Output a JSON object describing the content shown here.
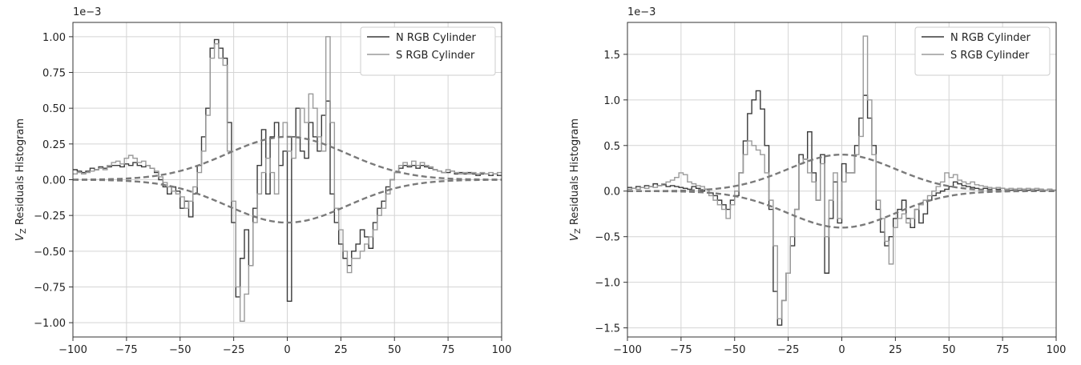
{
  "chart_data": [
    {
      "type": "line",
      "ylabel": "V_Z Residuals Histogram",
      "ylabel_sub": "Z",
      "offset_text": "1e−3",
      "xlim": [
        -100,
        100
      ],
      "ylim": [
        -1.1,
        1.1
      ],
      "xticks": [
        -100,
        -75,
        -50,
        -25,
        0,
        25,
        50,
        75,
        100
      ],
      "xtick_labels": [
        "−100",
        "−75",
        "−50",
        "−25",
        "0",
        "25",
        "50",
        "75",
        "100"
      ],
      "yticks": [
        -1.0,
        -0.75,
        -0.5,
        -0.25,
        0,
        0.25,
        0.5,
        0.75,
        1.0
      ],
      "ytick_labels": [
        "−1.00",
        "−0.75",
        "−0.50",
        "−0.25",
        "0.00",
        "0.25",
        "0.50",
        "0.75",
        "1.00"
      ],
      "grid": true,
      "legend_position": "top-right",
      "bin_width": 2,
      "series": [
        {
          "name": "N RGB Cylinder",
          "style": "step",
          "color": "#3a3a3a",
          "x": [
            -100,
            -98,
            -96,
            -94,
            -92,
            -90,
            -88,
            -86,
            -84,
            -82,
            -80,
            -78,
            -76,
            -74,
            -72,
            -70,
            -68,
            -66,
            -64,
            -62,
            -60,
            -58,
            -56,
            -54,
            -52,
            -50,
            -48,
            -46,
            -44,
            -42,
            -40,
            -38,
            -36,
            -34,
            -32,
            -30,
            -28,
            -26,
            -24,
            -22,
            -20,
            -18,
            -16,
            -14,
            -12,
            -10,
            -8,
            -6,
            -4,
            -2,
            0,
            2,
            4,
            6,
            8,
            10,
            12,
            14,
            16,
            18,
            20,
            22,
            24,
            26,
            28,
            30,
            32,
            34,
            36,
            38,
            40,
            42,
            44,
            46,
            48,
            50,
            52,
            54,
            56,
            58,
            60,
            62,
            64,
            66,
            68,
            70,
            72,
            74,
            76,
            78,
            80,
            82,
            84,
            86,
            88,
            90,
            92,
            94,
            96,
            98
          ],
          "values": [
            0.07,
            0.06,
            0.05,
            0.06,
            0.08,
            0.07,
            0.09,
            0.08,
            0.09,
            0.1,
            0.1,
            0.09,
            0.11,
            0.1,
            0.12,
            0.1,
            0.09,
            0.1,
            0.08,
            0.05,
            0.0,
            -0.05,
            -0.1,
            -0.05,
            -0.08,
            -0.2,
            -0.15,
            -0.26,
            -0.1,
            0.1,
            0.3,
            0.5,
            0.92,
            0.98,
            0.92,
            0.85,
            0.4,
            -0.3,
            -0.82,
            -0.55,
            -0.35,
            -0.6,
            -0.2,
            0.1,
            0.35,
            -0.1,
            0.3,
            0.4,
            0.1,
            0.2,
            -0.85,
            0.3,
            0.5,
            0.2,
            0.15,
            0.4,
            0.3,
            0.2,
            0.45,
            0.55,
            -0.1,
            -0.3,
            -0.45,
            -0.55,
            -0.6,
            -0.5,
            -0.45,
            -0.35,
            -0.4,
            -0.48,
            -0.3,
            -0.2,
            -0.15,
            -0.05,
            0.0,
            0.05,
            0.08,
            0.1,
            0.09,
            0.1,
            0.08,
            0.1,
            0.09,
            0.08,
            0.07,
            0.06,
            0.05,
            0.05,
            0.06,
            0.04,
            0.05,
            0.04,
            0.05,
            0.04,
            0.03,
            0.04,
            0.04,
            0.03,
            0.04,
            0.03
          ]
        },
        {
          "name": "S RGB Cylinder",
          "style": "step",
          "color": "#9a9a9a",
          "x": [
            -100,
            -98,
            -96,
            -94,
            -92,
            -90,
            -88,
            -86,
            -84,
            -82,
            -80,
            -78,
            -76,
            -74,
            -72,
            -70,
            -68,
            -66,
            -64,
            -62,
            -60,
            -58,
            -56,
            -54,
            -52,
            -50,
            -48,
            -46,
            -44,
            -42,
            -40,
            -38,
            -36,
            -34,
            -32,
            -30,
            -28,
            -26,
            -24,
            -22,
            -20,
            -18,
            -16,
            -14,
            -12,
            -10,
            -8,
            -6,
            -4,
            -2,
            0,
            2,
            4,
            6,
            8,
            10,
            12,
            14,
            16,
            18,
            20,
            22,
            24,
            26,
            28,
            30,
            32,
            34,
            36,
            38,
            40,
            42,
            44,
            46,
            48,
            50,
            52,
            54,
            56,
            58,
            60,
            62,
            64,
            66,
            68,
            70,
            72,
            74,
            76,
            78,
            80,
            82,
            84,
            86,
            88,
            90,
            92,
            94,
            96,
            98
          ],
          "values": [
            0.04,
            0.05,
            0.04,
            0.05,
            0.06,
            0.07,
            0.08,
            0.07,
            0.1,
            0.12,
            0.13,
            0.11,
            0.15,
            0.17,
            0.15,
            0.12,
            0.13,
            0.1,
            0.08,
            0.06,
            0.02,
            -0.02,
            -0.05,
            -0.08,
            -0.1,
            -0.12,
            -0.2,
            -0.15,
            -0.05,
            0.05,
            0.2,
            0.45,
            0.85,
            0.95,
            0.85,
            0.8,
            0.2,
            -0.15,
            -0.75,
            -0.99,
            -0.8,
            -0.6,
            -0.3,
            -0.1,
            0.05,
            0.15,
            0.05,
            -0.1,
            0.3,
            0.4,
            0.2,
            0.15,
            0.3,
            0.5,
            0.4,
            0.6,
            0.5,
            0.3,
            0.2,
            1.0,
            0.4,
            -0.2,
            -0.35,
            -0.5,
            -0.65,
            -0.55,
            -0.55,
            -0.5,
            -0.45,
            -0.4,
            -0.35,
            -0.25,
            -0.2,
            -0.1,
            0.0,
            0.05,
            0.1,
            0.12,
            0.1,
            0.13,
            0.1,
            0.12,
            0.1,
            0.09,
            0.07,
            0.06,
            0.05,
            0.07,
            0.06,
            0.05,
            0.04,
            0.05,
            0.04,
            0.05,
            0.04,
            0.05,
            0.04,
            0.05,
            0.04,
            0.05
          ]
        },
        {
          "name": "",
          "style": "dashed-gaussian",
          "color": "#7a7a7a",
          "amplitude": 0.3,
          "center": 0,
          "sigma": 28
        },
        {
          "name": "",
          "style": "dashed-gaussian",
          "color": "#7a7a7a",
          "amplitude": -0.3,
          "center": 0,
          "sigma": 28
        }
      ]
    },
    {
      "type": "line",
      "ylabel": "V_Z Residuals Histogram",
      "ylabel_sub": "Z",
      "offset_text": "1e−3",
      "xlim": [
        -100,
        100
      ],
      "ylim": [
        -1.6,
        1.85
      ],
      "xticks": [
        -100,
        -75,
        -50,
        -25,
        0,
        25,
        50,
        75,
        100
      ],
      "xtick_labels": [
        "−100",
        "−75",
        "−50",
        "−25",
        "0",
        "25",
        "50",
        "75",
        "100"
      ],
      "yticks": [
        -1.5,
        -1.0,
        -0.5,
        0,
        0.5,
        1.0,
        1.5
      ],
      "ytick_labels": [
        "−1.5",
        "−1.0",
        "−0.5",
        "0.0",
        "0.5",
        "1.0",
        "1.5"
      ],
      "grid": true,
      "legend_position": "top-right",
      "bin_width": 2,
      "series": [
        {
          "name": "N RGB Cylinder",
          "style": "step",
          "color": "#3a3a3a",
          "x": [
            -100,
            -98,
            -96,
            -94,
            -92,
            -90,
            -88,
            -86,
            -84,
            -82,
            -80,
            -78,
            -76,
            -74,
            -72,
            -70,
            -68,
            -66,
            -64,
            -62,
            -60,
            -58,
            -56,
            -54,
            -52,
            -50,
            -48,
            -46,
            -44,
            -42,
            -40,
            -38,
            -36,
            -34,
            -32,
            -30,
            -28,
            -26,
            -24,
            -22,
            -20,
            -18,
            -16,
            -14,
            -12,
            -10,
            -8,
            -6,
            -4,
            -2,
            0,
            2,
            4,
            6,
            8,
            10,
            12,
            14,
            16,
            18,
            20,
            22,
            24,
            26,
            28,
            30,
            32,
            34,
            36,
            38,
            40,
            42,
            44,
            46,
            48,
            50,
            52,
            54,
            56,
            58,
            60,
            62,
            64,
            66,
            68,
            70,
            72,
            74,
            76,
            78,
            80,
            82,
            84,
            86,
            88,
            90,
            92,
            94,
            96,
            98
          ],
          "values": [
            0.04,
            0.03,
            0.05,
            0.04,
            0.06,
            0.05,
            0.08,
            0.06,
            0.07,
            0.05,
            0.06,
            0.05,
            0.04,
            0.03,
            0.02,
            0.05,
            0.03,
            0.0,
            0.02,
            -0.02,
            -0.05,
            -0.1,
            -0.15,
            -0.2,
            -0.1,
            -0.05,
            0.2,
            0.55,
            0.85,
            1.0,
            1.1,
            0.9,
            0.5,
            -0.2,
            -1.1,
            -1.47,
            -1.2,
            -0.9,
            -0.6,
            -0.2,
            0.4,
            0.35,
            0.65,
            0.2,
            -0.1,
            0.4,
            -0.9,
            -0.3,
            0.1,
            -0.35,
            0.3,
            0.2,
            0.2,
            0.5,
            0.8,
            1.05,
            0.8,
            0.5,
            -0.2,
            -0.45,
            -0.6,
            -0.5,
            -0.3,
            -0.2,
            -0.1,
            -0.3,
            -0.4,
            -0.2,
            -0.35,
            -0.25,
            -0.1,
            -0.05,
            -0.02,
            0.0,
            0.02,
            0.05,
            0.1,
            0.08,
            0.06,
            0.05,
            0.04,
            0.03,
            0.02,
            0.03,
            0.02,
            0.03,
            0.02,
            0.03,
            0.02,
            0.01,
            0.02,
            0.01,
            0.02,
            0.01,
            0.02,
            0.01,
            0.02,
            0.01,
            0.02,
            0.01
          ]
        },
        {
          "name": "S RGB Cylinder",
          "style": "step",
          "color": "#9a9a9a",
          "x": [
            -100,
            -98,
            -96,
            -94,
            -92,
            -90,
            -88,
            -86,
            -84,
            -82,
            -80,
            -78,
            -76,
            -74,
            -72,
            -70,
            -68,
            -66,
            -64,
            -62,
            -60,
            -58,
            -56,
            -54,
            -52,
            -50,
            -48,
            -46,
            -44,
            -42,
            -40,
            -38,
            -36,
            -34,
            -32,
            -30,
            -28,
            -26,
            -24,
            -22,
            -20,
            -18,
            -16,
            -14,
            -12,
            -10,
            -8,
            -6,
            -4,
            -2,
            0,
            2,
            4,
            6,
            8,
            10,
            12,
            14,
            16,
            18,
            20,
            22,
            24,
            26,
            28,
            30,
            32,
            34,
            36,
            38,
            40,
            42,
            44,
            46,
            48,
            50,
            52,
            54,
            56,
            58,
            60,
            62,
            64,
            66,
            68,
            70,
            72,
            74,
            76,
            78,
            80,
            82,
            84,
            86,
            88,
            90,
            92,
            94,
            96,
            98
          ],
          "values": [
            0.02,
            0.03,
            0.02,
            0.04,
            0.03,
            0.05,
            0.04,
            0.06,
            0.08,
            0.1,
            0.12,
            0.15,
            0.2,
            0.18,
            0.1,
            0.08,
            0.06,
            0.05,
            0.02,
            -0.05,
            -0.1,
            -0.15,
            -0.2,
            -0.3,
            -0.15,
            0.0,
            0.2,
            0.4,
            0.55,
            0.5,
            0.45,
            0.4,
            0.2,
            -0.1,
            -0.6,
            -1.4,
            -1.2,
            -0.9,
            -0.5,
            -0.2,
            0.3,
            0.35,
            0.2,
            0.1,
            -0.1,
            0.3,
            -0.5,
            -0.1,
            0.2,
            -0.3,
            0.1,
            0.2,
            0.2,
            0.4,
            0.6,
            1.7,
            1.0,
            0.4,
            -0.1,
            -0.3,
            -0.55,
            -0.8,
            -0.4,
            -0.3,
            -0.25,
            -0.35,
            -0.3,
            -0.2,
            -0.15,
            -0.1,
            -0.05,
            0.0,
            0.05,
            0.1,
            0.2,
            0.15,
            0.18,
            0.12,
            0.1,
            0.08,
            0.1,
            0.07,
            0.06,
            0.05,
            0.04,
            0.03,
            0.04,
            0.03,
            0.02,
            0.03,
            0.02,
            0.03,
            0.02,
            0.03,
            0.02,
            0.03,
            0.02,
            0.01,
            0.02,
            0.01
          ]
        },
        {
          "name": "",
          "style": "dashed-gaussian",
          "color": "#7a7a7a",
          "amplitude": 0.4,
          "center": 0,
          "sigma": 25
        },
        {
          "name": "",
          "style": "dashed-gaussian",
          "color": "#7a7a7a",
          "amplitude": -0.4,
          "center": 0,
          "sigma": 25
        }
      ]
    }
  ]
}
